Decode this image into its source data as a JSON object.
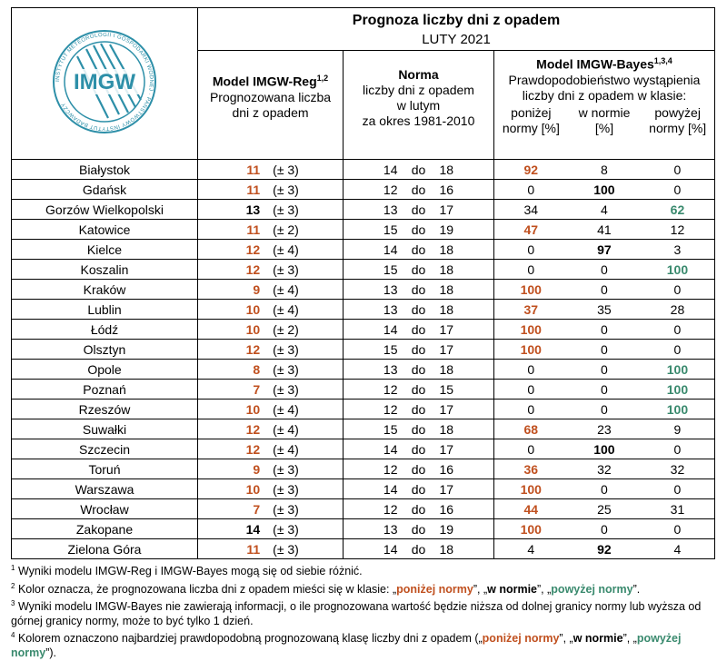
{
  "header": {
    "title": "Prognoza liczby dni z opadem",
    "subtitle": "LUTY 2021",
    "col1_title": "Model IMGW-Reg",
    "col1_sup": "1,2",
    "col1_desc_1": "Prognozowana liczba",
    "col1_desc_2": "dni z opadem",
    "col2_title": "Norma",
    "col2_desc_1": "liczby dni z opadem",
    "col2_desc_2": "w lutym",
    "col2_desc_3": "za okres 1981-2010",
    "col3_title": "Model IMGW-Bayes",
    "col3_sup": "1,3,4",
    "col3_desc_1": "Prawdopodobieństwo wystąpienia",
    "col3_desc_2": "liczby dni z opadem w klasie:",
    "col3_sub_below": "poniżej normy [%]",
    "col3_sub_normal": "w normie [%]",
    "col3_sub_above": "powyżej normy [%]"
  },
  "logo": {
    "text": "IMGW",
    "ring_text": "INSTYTUT METEOROLOGII I GOSPODARKI WODNEJ · PAŃSTWOWY INSTYTUT BADAWCZY"
  },
  "norm_sep": "do",
  "colors": {
    "below": "#c0501f",
    "normal": "#000000",
    "above": "#3a8a6e",
    "logo": "#2d8fa8"
  },
  "rows": [
    {
      "city": "Białystok",
      "fc": "11",
      "unc": "(± 3)",
      "fc_color": "below",
      "n1": "14",
      "n2": "18",
      "p": [
        "92",
        "8",
        "0"
      ],
      "hl": 0
    },
    {
      "city": "Gdańsk",
      "fc": "11",
      "unc": "(± 3)",
      "fc_color": "below",
      "n1": "12",
      "n2": "16",
      "p": [
        "0",
        "100",
        "0"
      ],
      "hl": 1
    },
    {
      "city": "Gorzów Wielkopolski",
      "fc": "13",
      "unc": "(± 3)",
      "fc_color": "normal",
      "n1": "13",
      "n2": "17",
      "p": [
        "34",
        "4",
        "62"
      ],
      "hl": 2
    },
    {
      "city": "Katowice",
      "fc": "11",
      "unc": "(± 2)",
      "fc_color": "below",
      "n1": "15",
      "n2": "19",
      "p": [
        "47",
        "41",
        "12"
      ],
      "hl": 0
    },
    {
      "city": "Kielce",
      "fc": "12",
      "unc": "(± 4)",
      "fc_color": "below",
      "n1": "14",
      "n2": "18",
      "p": [
        "0",
        "97",
        "3"
      ],
      "hl": 1
    },
    {
      "city": "Koszalin",
      "fc": "12",
      "unc": "(± 3)",
      "fc_color": "below",
      "n1": "15",
      "n2": "18",
      "p": [
        "0",
        "0",
        "100"
      ],
      "hl": 2
    },
    {
      "city": "Kraków",
      "fc": "9",
      "unc": "(± 4)",
      "fc_color": "below",
      "n1": "13",
      "n2": "18",
      "p": [
        "100",
        "0",
        "0"
      ],
      "hl": 0
    },
    {
      "city": "Lublin",
      "fc": "10",
      "unc": "(± 4)",
      "fc_color": "below",
      "n1": "13",
      "n2": "18",
      "p": [
        "37",
        "35",
        "28"
      ],
      "hl": 0
    },
    {
      "city": "Łódź",
      "fc": "10",
      "unc": "(± 2)",
      "fc_color": "below",
      "n1": "14",
      "n2": "17",
      "p": [
        "100",
        "0",
        "0"
      ],
      "hl": 0
    },
    {
      "city": "Olsztyn",
      "fc": "12",
      "unc": "(± 3)",
      "fc_color": "below",
      "n1": "15",
      "n2": "17",
      "p": [
        "100",
        "0",
        "0"
      ],
      "hl": 0
    },
    {
      "city": "Opole",
      "fc": "8",
      "unc": "(± 3)",
      "fc_color": "below",
      "n1": "13",
      "n2": "18",
      "p": [
        "0",
        "0",
        "100"
      ],
      "hl": 2
    },
    {
      "city": "Poznań",
      "fc": "7",
      "unc": "(± 3)",
      "fc_color": "below",
      "n1": "12",
      "n2": "15",
      "p": [
        "0",
        "0",
        "100"
      ],
      "hl": 2
    },
    {
      "city": "Rzeszów",
      "fc": "10",
      "unc": "(± 4)",
      "fc_color": "below",
      "n1": "12",
      "n2": "17",
      "p": [
        "0",
        "0",
        "100"
      ],
      "hl": 2
    },
    {
      "city": "Suwałki",
      "fc": "12",
      "unc": "(± 4)",
      "fc_color": "below",
      "n1": "15",
      "n2": "18",
      "p": [
        "68",
        "23",
        "9"
      ],
      "hl": 0
    },
    {
      "city": "Szczecin",
      "fc": "12",
      "unc": "(± 4)",
      "fc_color": "below",
      "n1": "14",
      "n2": "17",
      "p": [
        "0",
        "100",
        "0"
      ],
      "hl": 1
    },
    {
      "city": "Toruń",
      "fc": "9",
      "unc": "(± 3)",
      "fc_color": "below",
      "n1": "12",
      "n2": "16",
      "p": [
        "36",
        "32",
        "32"
      ],
      "hl": 0
    },
    {
      "city": "Warszawa",
      "fc": "10",
      "unc": "(± 3)",
      "fc_color": "below",
      "n1": "14",
      "n2": "17",
      "p": [
        "100",
        "0",
        "0"
      ],
      "hl": 0
    },
    {
      "city": "Wrocław",
      "fc": "7",
      "unc": "(± 3)",
      "fc_color": "below",
      "n1": "12",
      "n2": "16",
      "p": [
        "44",
        "25",
        "31"
      ],
      "hl": 0
    },
    {
      "city": "Zakopane",
      "fc": "14",
      "unc": "(± 3)",
      "fc_color": "normal",
      "n1": "13",
      "n2": "19",
      "p": [
        "100",
        "0",
        "0"
      ],
      "hl": 0
    },
    {
      "city": "Zielona Góra",
      "fc": "11",
      "unc": "(± 3)",
      "fc_color": "below",
      "n1": "14",
      "n2": "18",
      "p": [
        "4",
        "92",
        "4"
      ],
      "hl": 1
    }
  ],
  "footnotes": {
    "f1": "Wyniki modelu IMGW-Reg i IMGW-Bayes mogą się od siebie różnić.",
    "f2_a": "Kolor oznacza, że prognozowana liczba dni z opadem mieści się w klasie: „",
    "f2_below": "poniżej normy",
    "f2_b": "”, „",
    "f2_normal": "w normie",
    "f2_c": "”, „",
    "f2_above": "powyżej normy",
    "f2_d": "”.",
    "f3": "Wyniki modelu IMGW-Bayes nie zawierają informacji, o ile prognozowana wartość będzie niższa od dolnej granicy normy lub wyższa od górnej granicy normy, może to być tylko 1 dzień.",
    "f4_a": "Kolorem oznaczono najbardziej prawdopodobną prognozowaną klasę liczby dni z opadem („",
    "f4_below": "poniżej normy",
    "f4_b": "”, „",
    "f4_normal": "w normie",
    "f4_c": "”, „",
    "f4_above": "powyżej normy",
    "f4_d": "”)."
  }
}
